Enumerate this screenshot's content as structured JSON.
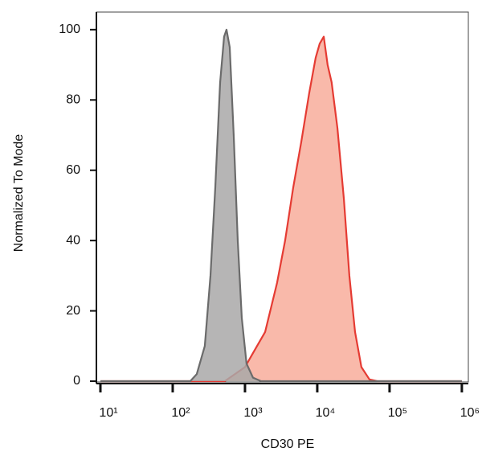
{
  "chart_data": {
    "type": "area",
    "xlabel": "CD30 PE",
    "ylabel": "Normalized To Mode",
    "xscale": "log",
    "xlim": [
      8.8,
      1230000
    ],
    "ylim": [
      0,
      105
    ],
    "xticks": [
      {
        "value": 10,
        "label": "10¹"
      },
      {
        "value": 100,
        "label": "10²"
      },
      {
        "value": 1000,
        "label": "10³"
      },
      {
        "value": 10000,
        "label": "10⁴"
      },
      {
        "value": 100000,
        "label": "10⁵"
      },
      {
        "value": 1000000,
        "label": "10⁶"
      }
    ],
    "yticks": [
      0,
      20,
      40,
      60,
      80,
      100
    ],
    "series": [
      {
        "color": "#e53b33",
        "fill": "#f8ad9b",
        "x": [
          10,
          525,
          1000,
          1290,
          1900,
          2780,
          3590,
          4640,
          6000,
          7740,
          9500,
          10800,
          12300,
          13900,
          15800,
          19000,
          23300,
          27800,
          33300,
          40800,
          52700,
          67600,
          1000000
        ],
        "values": [
          0,
          0,
          4,
          8,
          14,
          28,
          40,
          55,
          68,
          82,
          92,
          96,
          98,
          90,
          85,
          72,
          52,
          30,
          14,
          4,
          0.5,
          0,
          0
        ]
      },
      {
        "color": "#6b6b6b",
        "fill": "#a9a8a8",
        "x": [
          10,
          175,
          215,
          278,
          333,
          388,
          453,
          514,
          555,
          615,
          698,
          794,
          903,
          1050,
          1290,
          1670,
          1000000
        ],
        "values": [
          0,
          0,
          2,
          10,
          30,
          55,
          85,
          98,
          100,
          95,
          70,
          40,
          18,
          5,
          1,
          0,
          0
        ]
      }
    ]
  }
}
